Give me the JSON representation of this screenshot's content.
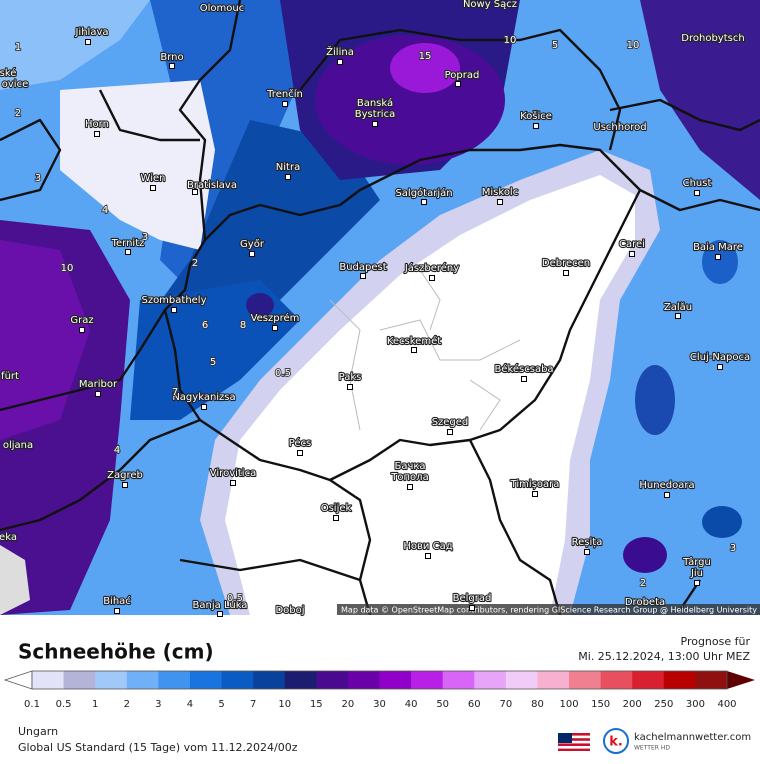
{
  "cities": [
    "Olomouc",
    "Nowy Sącz",
    "Jihlava",
    "Brno",
    "Žilina",
    "Poprad",
    "Drohobytsch",
    "ské",
    "ovice",
    "Horn",
    "Trenčín",
    "Banská",
    "Bystrica",
    "Košice",
    "Uschhorod",
    "Wien",
    "Bratislava",
    "Nitra",
    "Salgótarján",
    "Miskolc",
    "Chust",
    "Ternitz",
    "Győr",
    "Budapest",
    "Jászberény",
    "Debrecen",
    "Carei",
    "Baia Mare",
    "Szombathely",
    "Zalău",
    "Graz",
    "Veszprém",
    "Kecskemét",
    "Cluj-Napoca",
    "fürt",
    "Paks",
    "Békéscsaba",
    "Maribor",
    "Nagykanizsa",
    "oljana",
    "Pécs",
    "Szeged",
    "Zagreb",
    "Virovitica",
    "Бачка",
    "Топола",
    "Timișoara",
    "Hunedoara",
    "eka",
    "Osijek",
    "Нови Сад",
    "Reșița",
    "Târgu",
    "Jiu",
    "Bihać",
    "Banja Luka",
    "Doboj",
    "Belgrad",
    "Drobeta"
  ],
  "contour_labels": [
    "1",
    "2",
    "15",
    "10",
    "5",
    "10",
    "3",
    "4",
    "3",
    "10",
    "2",
    "6",
    "8",
    "5",
    "0.5",
    "7",
    "4",
    "0.5",
    "3",
    "2"
  ],
  "attribution": "Map data © OpenStreetMap contributors, rendering GIScience Research Group @ Heidelberg University",
  "legend": {
    "title": "Schneehöhe (cm)",
    "labels": [
      "0.1",
      "0.5",
      "1",
      "2",
      "3",
      "4",
      "5",
      "7",
      "10",
      "15",
      "20",
      "30",
      "40",
      "50",
      "60",
      "70",
      "80",
      "100",
      "150",
      "200",
      "250",
      "300",
      "400"
    ],
    "colors": [
      "#e2e2f8",
      "#b4b4d8",
      "#a0c8f8",
      "#70b0f8",
      "#4094f0",
      "#1a74e0",
      "#0a5cc4",
      "#08429c",
      "#1c1c70",
      "#4a0a90",
      "#6a00a8",
      "#9000c8",
      "#b820e8",
      "#d864f8",
      "#e8a4f8",
      "#f2ccf8",
      "#f8b0d0",
      "#f08090",
      "#e85060",
      "#d82030",
      "#b80000",
      "#901010",
      "#600000"
    ]
  },
  "forecast": {
    "label": "Prognose für",
    "time": "Mi. 25.12.2024, 13:00 Uhr MEZ"
  },
  "footer": {
    "region": "Ungarn",
    "model": "Global US Standard (15 Tage) vom  11.12.2024/00z",
    "brand": "kachelmannwetter.com",
    "brand_sub": "WETTER HD"
  }
}
